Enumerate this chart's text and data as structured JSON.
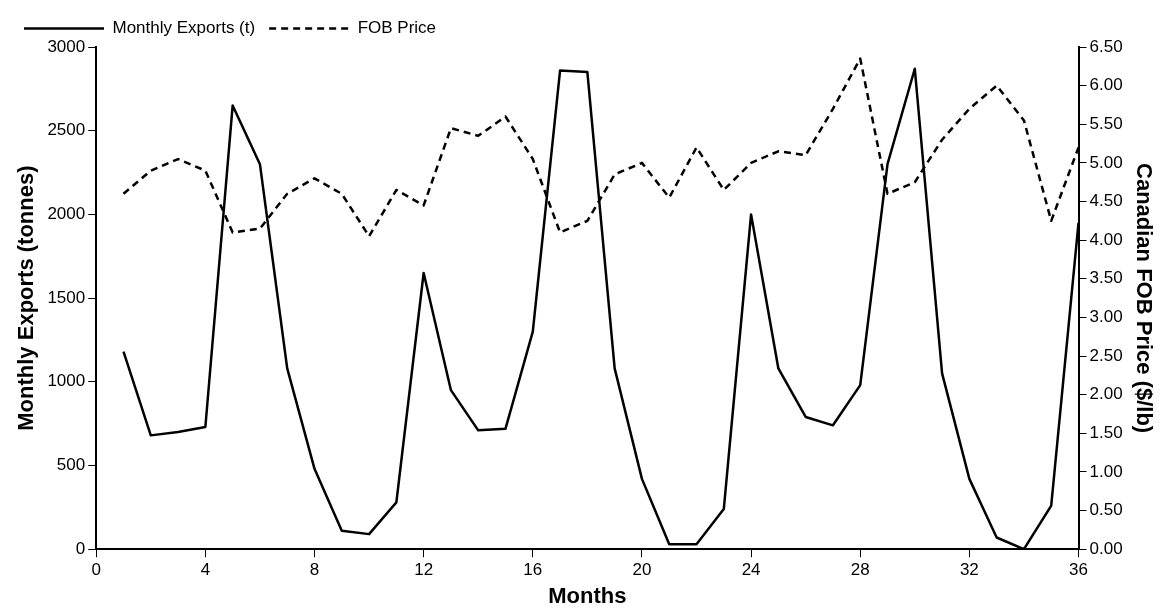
{
  "chart_data": {
    "type": "line",
    "xlabel": "Months",
    "ylabel": "Monthly Exports (tonnes)",
    "y2label": "Canadian FOB Price ($/lb)",
    "x": [
      1,
      2,
      3,
      4,
      5,
      6,
      7,
      8,
      9,
      10,
      11,
      12,
      13,
      14,
      15,
      16,
      17,
      18,
      19,
      20,
      21,
      22,
      23,
      24,
      25,
      26,
      27,
      28,
      29,
      30,
      31,
      32,
      33,
      34,
      35,
      36
    ],
    "series": [
      {
        "name": "Monthly Exports (t)",
        "color": "#000000",
        "line_style": "solid",
        "values": [
          1180,
          680,
          700,
          730,
          2650,
          2300,
          1080,
          480,
          110,
          90,
          280,
          1650,
          950,
          710,
          720,
          1300,
          2860,
          2850,
          1080,
          420,
          30,
          30,
          240,
          2000,
          1080,
          790,
          740,
          980,
          2300,
          2870,
          1050,
          420,
          70,
          0,
          260,
          1950
        ]
      },
      {
        "name": "FOB Price",
        "color": "#000000",
        "line_style": "dashed",
        "axis": "y2",
        "values": [
          4.6,
          4.9,
          5.05,
          4.9,
          4.1,
          4.15,
          4.6,
          4.8,
          4.6,
          4.05,
          4.65,
          4.45,
          5.45,
          5.35,
          5.6,
          5.05,
          4.1,
          4.25,
          4.85,
          5.0,
          4.55,
          5.2,
          4.65,
          5.0,
          5.15,
          5.1,
          5.7,
          6.35,
          4.6,
          4.75,
          5.3,
          5.7,
          6.0,
          5.55,
          4.25,
          5.2
        ]
      }
    ],
    "xlim": [
      0,
      36
    ],
    "xticks": [
      0,
      4,
      8,
      12,
      16,
      20,
      24,
      28,
      32,
      36
    ],
    "ylim": [
      0,
      3000
    ],
    "yticks": [
      0,
      500,
      1000,
      1500,
      2000,
      2500,
      3000
    ],
    "y2lim": [
      0,
      6.5
    ],
    "y2ticks": [
      {
        "value": 0,
        "label": "0.00"
      },
      {
        "value": 0.5,
        "label": "0.50"
      },
      {
        "value": 1,
        "label": "1.00"
      },
      {
        "value": 1.5,
        "label": "1.50"
      },
      {
        "value": 2,
        "label": "2.00"
      },
      {
        "value": 2.5,
        "label": "2.50"
      },
      {
        "value": 3,
        "label": "3.00"
      },
      {
        "value": 3.5,
        "label": "3.50"
      },
      {
        "value": 4,
        "label": "4.00"
      },
      {
        "value": 4.5,
        "label": "4.50"
      },
      {
        "value": 5,
        "label": "5.00"
      },
      {
        "value": 5.5,
        "label": "5.50"
      },
      {
        "value": 6,
        "label": "6.00"
      },
      {
        "value": 6.5,
        "label": "6.50"
      }
    ],
    "grid": false,
    "legend": "top left",
    "marker": "none"
  }
}
